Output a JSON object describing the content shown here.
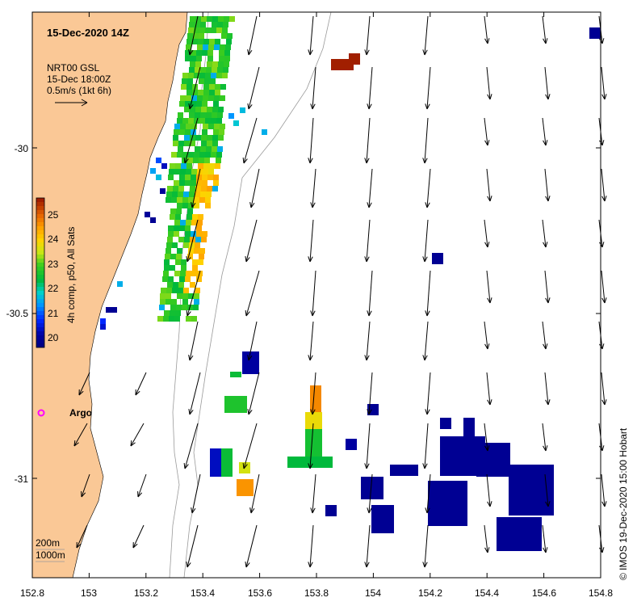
{
  "title": "15-Dec-2020 14Z",
  "currents": {
    "source": "NRT00 GSL",
    "time": "15-Dec 18:00Z",
    "scale_label": "0.5m/s (1kt 6h)"
  },
  "colorbar": {
    "label": "4h comp, p50, All Sats",
    "min": 19.5,
    "max": 25.5,
    "ticks": [
      "20",
      "21",
      "22",
      "23",
      "24",
      "25"
    ]
  },
  "argo_label": "Argo",
  "contours": [
    "200m",
    "1000m"
  ],
  "credit": "© IMOS 19-Dec-2020 15:00 Hobart",
  "x_ticks": [
    "152.8",
    "153",
    "153.2",
    "153.4",
    "153.6",
    "153.8",
    "154",
    "154.2",
    "154.4",
    "154.6",
    "154.8"
  ],
  "y_ticks": [
    "-30",
    "-30.5",
    "-31"
  ],
  "colors": {
    "land": "#fac896",
    "low_sst": "#000080",
    "argo": "#ff00ff"
  }
}
